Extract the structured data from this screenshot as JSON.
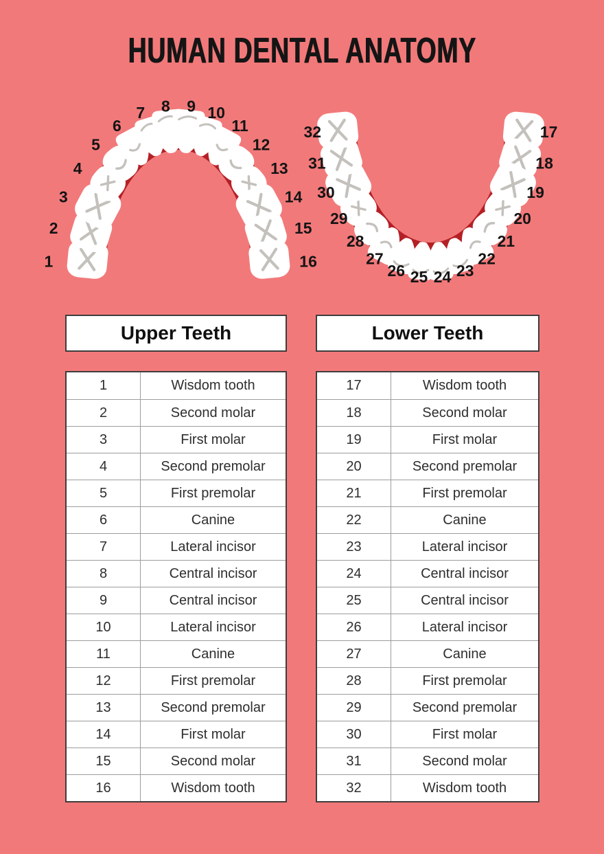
{
  "title": "HUMAN DENTAL ANATOMY",
  "colors": {
    "background": "#F2797A",
    "gum": "#B42026",
    "tooth": "#FFFFFF",
    "tooth_detail": "#C4C1BD",
    "number_label": "#141414",
    "table_border_outer": "#3D3D3D",
    "table_border_inner": "#9C9C9C"
  },
  "diagram": {
    "tooth_types": [
      "molar",
      "molar",
      "molar",
      "premolar2",
      "premolar1",
      "canine",
      "incisor",
      "incisor",
      "incisor",
      "incisor",
      "canine",
      "premolar1",
      "premolar2",
      "molar",
      "molar",
      "molar"
    ],
    "upper_arch": {
      "tooth_numbers": [
        1,
        2,
        3,
        4,
        5,
        6,
        7,
        8,
        9,
        10,
        11,
        12,
        13,
        14,
        15,
        16
      ]
    },
    "lower_arch": {
      "tooth_numbers": [
        17,
        18,
        19,
        20,
        21,
        22,
        23,
        24,
        25,
        26,
        27,
        28,
        29,
        30,
        31,
        32
      ]
    }
  },
  "tables": {
    "upper": {
      "header": "Upper Teeth",
      "rows": [
        {
          "number": "1",
          "name": "Wisdom tooth"
        },
        {
          "number": "2",
          "name": "Second molar"
        },
        {
          "number": "3",
          "name": "First molar"
        },
        {
          "number": "4",
          "name": "Second premolar"
        },
        {
          "number": "5",
          "name": "First premolar"
        },
        {
          "number": "6",
          "name": "Canine"
        },
        {
          "number": "7",
          "name": "Lateral incisor"
        },
        {
          "number": "8",
          "name": "Central incisor"
        },
        {
          "number": "9",
          "name": "Central incisor"
        },
        {
          "number": "10",
          "name": "Lateral incisor"
        },
        {
          "number": "11",
          "name": "Canine"
        },
        {
          "number": "12",
          "name": "First premolar"
        },
        {
          "number": "13",
          "name": "Second premolar"
        },
        {
          "number": "14",
          "name": "First molar"
        },
        {
          "number": "15",
          "name": "Second molar"
        },
        {
          "number": "16",
          "name": "Wisdom tooth"
        }
      ]
    },
    "lower": {
      "header": "Lower Teeth",
      "rows": [
        {
          "number": "17",
          "name": "Wisdom tooth"
        },
        {
          "number": "18",
          "name": "Second molar"
        },
        {
          "number": "19",
          "name": "First molar"
        },
        {
          "number": "20",
          "name": "Second premolar"
        },
        {
          "number": "21",
          "name": "First premolar"
        },
        {
          "number": "22",
          "name": "Canine"
        },
        {
          "number": "23",
          "name": "Lateral incisor"
        },
        {
          "number": "24",
          "name": "Central incisor"
        },
        {
          "number": "25",
          "name": "Central incisor"
        },
        {
          "number": "26",
          "name": "Lateral incisor"
        },
        {
          "number": "27",
          "name": "Canine"
        },
        {
          "number": "28",
          "name": "First premolar"
        },
        {
          "number": "29",
          "name": "Second premolar"
        },
        {
          "number": "30",
          "name": "First molar"
        },
        {
          "number": "31",
          "name": "Second molar"
        },
        {
          "number": "32",
          "name": "Wisdom tooth"
        }
      ]
    }
  }
}
